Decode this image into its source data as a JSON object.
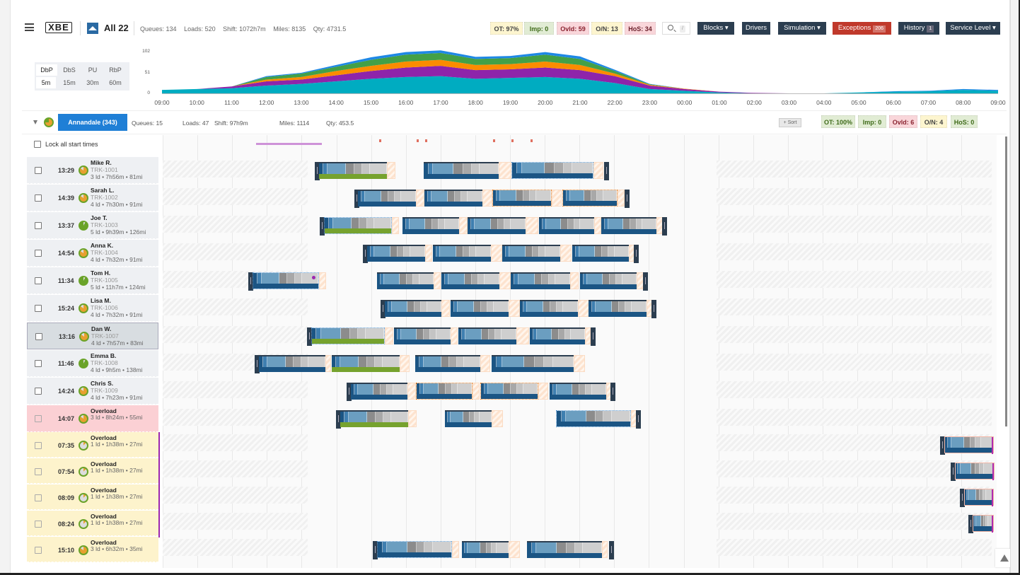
{
  "topbar": {
    "logo": "XBE",
    "workspace": "All 22",
    "stats": [
      "Queues: 134",
      "Loads: 520",
      "Shift: 1072h7m",
      "Miles: 8135",
      "Qty: 4731.5"
    ],
    "badges": [
      {
        "label": "OT: 97%",
        "style": "yel"
      },
      {
        "label": "Imp: 0",
        "style": "grn"
      },
      {
        "label": "Ovld: 59",
        "style": "red"
      },
      {
        "label": "O/N: 13",
        "style": "yel"
      },
      {
        "label": "HoS: 34",
        "style": "pink"
      }
    ],
    "search_shortcut": "/",
    "buttons": {
      "blocks": "Blocks ▾",
      "drivers": "Drivers",
      "simulation": "Simulation ▾",
      "exceptions": "Exceptions",
      "exceptions_count": "206",
      "history": "History",
      "history_count": "1",
      "service_level": "Service Level ▾"
    }
  },
  "chart_controls": {
    "modes": [
      "DbP",
      "DbS",
      "PU",
      "RbP"
    ],
    "active_mode": "DbP",
    "intervals": [
      "5m",
      "15m",
      "30m",
      "60m"
    ],
    "active_interval": "5m"
  },
  "chart_data": {
    "type": "area",
    "title": "",
    "xlabel": "",
    "ylabel": "",
    "ylim": [
      0,
      102
    ],
    "y_ticks": [
      "102",
      "51",
      "0"
    ],
    "x": [
      "09:00",
      "10:00",
      "11:00",
      "12:00",
      "13:00",
      "14:00",
      "15:00",
      "16:00",
      "17:00",
      "18:00",
      "19:00",
      "20:00",
      "21:00",
      "22:00",
      "23:00",
      "00:00",
      "01:00",
      "02:00",
      "03:00",
      "04:00",
      "05:00",
      "06:00",
      "07:00",
      "08:00",
      "09:00"
    ],
    "series": [
      {
        "name": "teal",
        "color": "#00acc1",
        "values": [
          8,
          10,
          12,
          18,
          22,
          28,
          34,
          38,
          40,
          34,
          36,
          38,
          34,
          24,
          10,
          6,
          2,
          0,
          0,
          0,
          2,
          4,
          5,
          8,
          6
        ]
      },
      {
        "name": "purple",
        "color": "#8e24aa",
        "values": [
          0,
          0,
          4,
          10,
          10,
          14,
          18,
          22,
          24,
          20,
          20,
          22,
          20,
          16,
          8,
          4,
          2,
          1,
          0,
          0,
          0,
          0,
          0,
          0,
          0
        ]
      },
      {
        "name": "orange",
        "color": "#fb8c00",
        "values": [
          0,
          0,
          0,
          4,
          6,
          10,
          12,
          14,
          14,
          12,
          12,
          14,
          12,
          6,
          2,
          1,
          0,
          0,
          0,
          0,
          0,
          0,
          0,
          0,
          0
        ]
      },
      {
        "name": "green",
        "color": "#43a047",
        "values": [
          0,
          0,
          0,
          6,
          8,
          10,
          14,
          16,
          16,
          14,
          14,
          16,
          14,
          6,
          1,
          0,
          0,
          0,
          0,
          0,
          0,
          0,
          0,
          0,
          0
        ]
      },
      {
        "name": "blue",
        "color": "#1e88e5",
        "values": [
          0,
          0,
          0,
          2,
          2,
          4,
          6,
          6,
          6,
          5,
          5,
          6,
          6,
          3,
          1,
          0,
          0,
          0,
          0,
          0,
          0,
          1,
          1,
          2,
          2
        ]
      }
    ],
    "grid": false,
    "legend": "none"
  },
  "group": {
    "name": "Annandale (343)",
    "stats": [
      "Queues: 15",
      "Loads: 47",
      "Shift: 97h9m",
      "Miles: 1114",
      "Qty: 453.5"
    ],
    "sort_label": "+ Sort",
    "badges": [
      {
        "label": "OT: 100%",
        "style": "grn"
      },
      {
        "label": "Imp: 0",
        "style": "grn"
      },
      {
        "label": "Ovld: 6",
        "style": "red"
      },
      {
        "label": "O/N: 4",
        "style": "yel"
      },
      {
        "label": "HoS: 0",
        "style": "grn"
      }
    ],
    "lock_label": "Lock all start times"
  },
  "drivers": [
    {
      "time": "13:29",
      "name": "Mike R.",
      "truck": "TRK-1001",
      "meta": "3 ld • 7h56m • 81mi",
      "kind": "normal"
    },
    {
      "time": "14:39",
      "name": "Sarah L.",
      "truck": "TRK-1002",
      "meta": "4 ld • 7h30m • 91mi",
      "kind": "normal"
    },
    {
      "time": "13:37",
      "name": "Joe T.",
      "truck": "TRK-1003",
      "meta": "5 ld • 9h39m • 126mi",
      "kind": "normal"
    },
    {
      "time": "14:54",
      "name": "Anna K.",
      "truck": "TRK-1004",
      "meta": "4 ld • 7h32m • 91mi",
      "kind": "normal"
    },
    {
      "time": "11:34",
      "name": "Tom H.",
      "truck": "TRK-1005",
      "meta": "5 ld • 11h7m • 124mi",
      "kind": "normal"
    },
    {
      "time": "15:24",
      "name": "Lisa M.",
      "truck": "TRK-1006",
      "meta": "4 ld • 7h32m • 91mi",
      "kind": "normal"
    },
    {
      "time": "13:16",
      "name": "Dan W.",
      "truck": "TRK-1007",
      "meta": "4 ld • 7h57m • 83mi",
      "kind": "selected"
    },
    {
      "time": "11:46",
      "name": "Emma B.",
      "truck": "TRK-1008",
      "meta": "4 ld • 9h5m • 138mi",
      "kind": "normal"
    },
    {
      "time": "14:24",
      "name": "Chris S.",
      "truck": "TRK-1009",
      "meta": "4 ld • 7h23m • 91mi",
      "kind": "normal"
    },
    {
      "time": "14:07",
      "name": "Overload",
      "truck": "",
      "meta": "3 ld • 8h24m • 55mi",
      "kind": "overload"
    },
    {
      "time": "07:35",
      "name": "Overload",
      "truck": "",
      "meta": "1 ld • 1h38m • 27mi",
      "kind": "yellow"
    },
    {
      "time": "07:54",
      "name": "Overload",
      "truck": "",
      "meta": "1 ld • 1h38m • 27mi",
      "kind": "yellow"
    },
    {
      "time": "08:09",
      "name": "Overload",
      "truck": "",
      "meta": "1 ld • 1h38m • 27mi",
      "kind": "yellow"
    },
    {
      "time": "08:24",
      "name": "Overload",
      "truck": "",
      "meta": "1 ld • 1h38m • 27mi",
      "kind": "yellow"
    },
    {
      "time": "15:10",
      "name": "Overload",
      "truck": "",
      "meta": "3 ld • 6h32m • 35mi",
      "kind": "yellow"
    }
  ],
  "colors": {
    "accent": "#1f7fd6",
    "dark_button": "#2c3e50",
    "exceptions": "#c0392b",
    "block_blue": "#1b5584",
    "block_green": "#76a22e"
  }
}
